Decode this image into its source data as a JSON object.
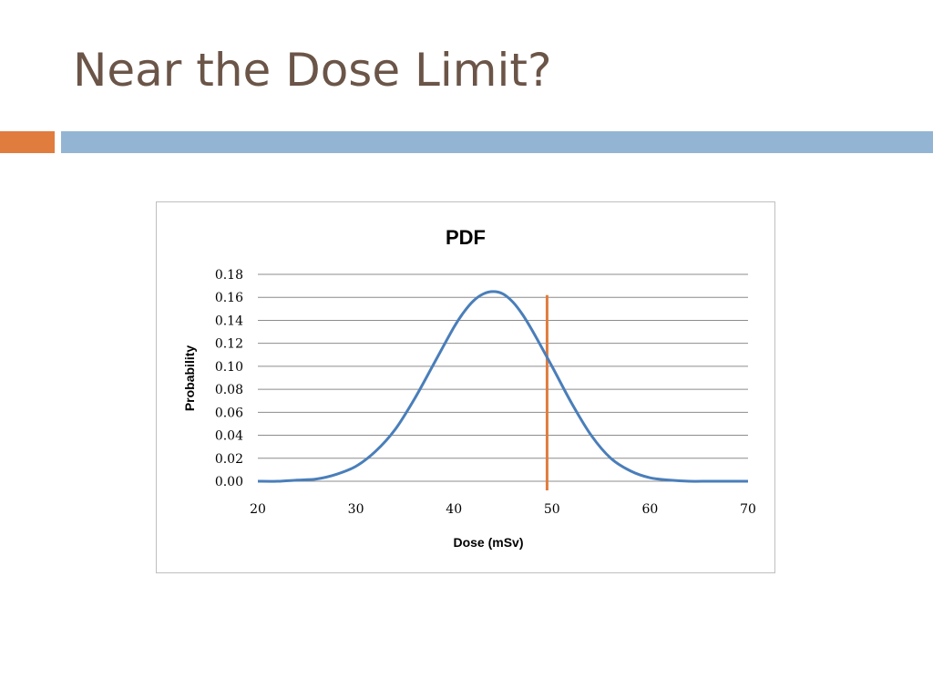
{
  "slide": {
    "title": "Near the Dose Limit?",
    "accent_left_color": "#e07c3e",
    "accent_right_color": "#93b5d3"
  },
  "chart_data": {
    "type": "line",
    "title": "PDF",
    "xlabel": "Dose (mSv)",
    "ylabel": "Probability",
    "xlim": [
      20,
      70
    ],
    "ylim": [
      0,
      0.18
    ],
    "x_ticks": [
      20,
      30,
      40,
      50,
      60,
      70
    ],
    "y_ticks": [
      "0.00",
      "0.02",
      "0.04",
      "0.06",
      "0.08",
      "0.10",
      "0.12",
      "0.14",
      "0.16",
      "0.18"
    ],
    "grid": "horizontal",
    "legend": "none",
    "series": [
      {
        "color": "#4a7eba",
        "x": [
          20,
          22,
          24,
          26,
          28,
          30,
          32,
          34,
          36,
          38,
          40,
          41,
          42,
          43,
          44,
          45,
          46,
          47,
          48,
          50,
          52,
          54,
          56,
          58,
          60,
          62,
          64,
          66,
          68,
          70
        ],
        "y": [
          0.0,
          0.0,
          0.001,
          0.002,
          0.006,
          0.013,
          0.026,
          0.045,
          0.072,
          0.103,
          0.134,
          0.147,
          0.157,
          0.163,
          0.165,
          0.163,
          0.156,
          0.145,
          0.131,
          0.1,
          0.068,
          0.04,
          0.02,
          0.009,
          0.003,
          0.001,
          0.0,
          0.0,
          0.0,
          0.0
        ]
      }
    ],
    "markers": [
      {
        "type": "vertical-line",
        "x": 49.5,
        "y_top": 0.162,
        "color": "#e07c3e"
      }
    ]
  }
}
